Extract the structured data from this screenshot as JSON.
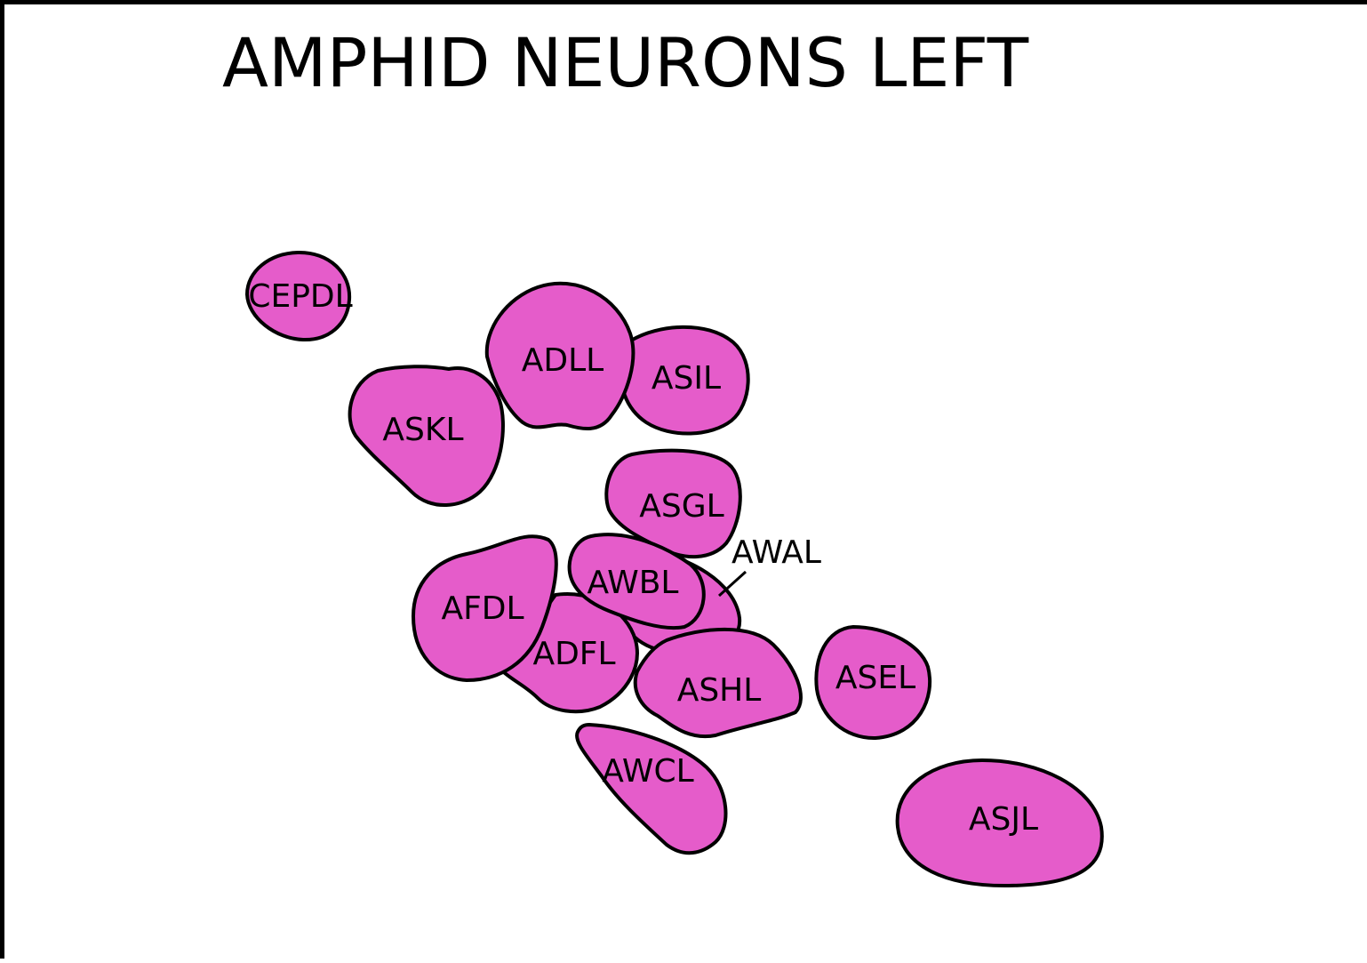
{
  "title": "AMPHID NEURONS LEFT",
  "fill_color": "#e55cca",
  "stroke_color": "#000000",
  "neurons": {
    "cepdl": "CEPDL",
    "adll": "ADLL",
    "asil": "ASIL",
    "askl": "ASKL",
    "asgl": "ASGL",
    "awal": "AWAL",
    "awbl": "AWBL",
    "afdl": "AFDL",
    "adfl": "ADFL",
    "ashl": "ASHL",
    "asel": "ASEL",
    "awcl": "AWCL",
    "asjl": "ASJL"
  }
}
